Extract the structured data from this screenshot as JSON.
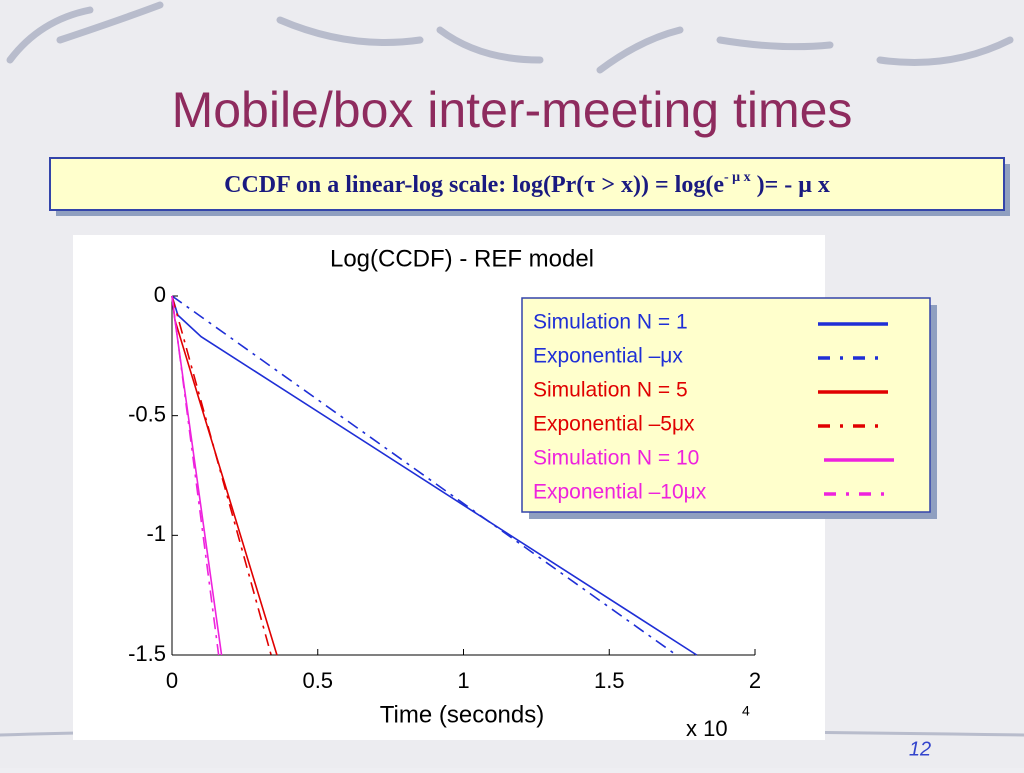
{
  "slide_title": "Mobile/box inter-meeting times",
  "subtitle": {
    "text": "CCDF on a linear-log scale: log(Pr(τ > x)) = log(e",
    "superscript": "- μ  x",
    "tail": " )= - μ  x"
  },
  "page_number": "12",
  "chart_data": {
    "type": "line",
    "title": "Log(CCDF) - REF model",
    "x_label": "Time (seconds)",
    "x_multiplier": "x 10",
    "x_multiplier_exponent": "4",
    "xlim": [
      0,
      2
    ],
    "xticks": [
      0,
      0.5,
      1,
      1.5,
      2
    ],
    "ylim": [
      -1.5,
      0
    ],
    "yticks": [
      0,
      -0.5,
      -1,
      -1.5
    ],
    "series": [
      {
        "name": "Simulation N = 1",
        "color": "#1f2fd6",
        "dash": "solid",
        "x": [
          0,
          0.02,
          0.1,
          1.8
        ],
        "values": [
          0,
          -0.08,
          -0.17,
          -1.5
        ]
      },
      {
        "name": "Exponential –μx",
        "color": "#1f2fd6",
        "dash": "dashdot",
        "x": [
          0,
          1.73
        ],
        "values": [
          0,
          -1.5
        ]
      },
      {
        "name": "Simulation N = 5",
        "color": "#e00000",
        "dash": "solid",
        "x": [
          0,
          0.01,
          0.36
        ],
        "values": [
          0,
          -0.1,
          -1.5
        ]
      },
      {
        "name": "Exponential –5μx",
        "color": "#e00000",
        "dash": "dashdot",
        "x": [
          0,
          0.34
        ],
        "values": [
          0,
          -1.5
        ]
      },
      {
        "name": "Simulation N = 10",
        "color": "#ee22dd",
        "dash": "solid",
        "x": [
          0,
          0.01,
          0.17
        ],
        "values": [
          0,
          -0.1,
          -1.5
        ]
      },
      {
        "name": "Exponential –10μx",
        "color": "#ee22dd",
        "dash": "dashdot",
        "x": [
          0,
          0.16
        ],
        "values": [
          0,
          -1.5
        ]
      }
    ],
    "legend": "upper right"
  }
}
